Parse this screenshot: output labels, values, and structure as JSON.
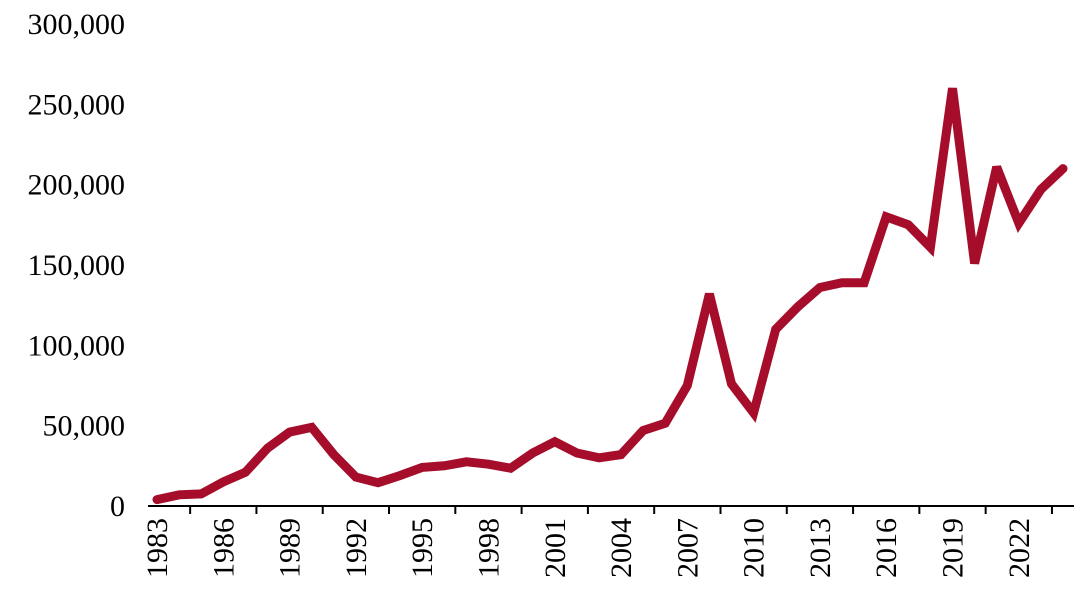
{
  "chart_data": {
    "type": "line",
    "title": "",
    "xlabel": "",
    "ylabel": "",
    "ylim": [
      0,
      300000
    ],
    "xlim": [
      1983,
      2024
    ],
    "grid": false,
    "legend": "none",
    "colors": {
      "line": "#A50D2B",
      "axis": "#000000",
      "background": "#FFFFFF"
    },
    "y_ticks": [
      {
        "value": 0,
        "label": "0"
      },
      {
        "value": 50000,
        "label": "50,000"
      },
      {
        "value": 100000,
        "label": "100,000"
      },
      {
        "value": 150000,
        "label": "150,000"
      },
      {
        "value": 200000,
        "label": "200,000"
      },
      {
        "value": 250000,
        "label": "250,000"
      },
      {
        "value": 300000,
        "label": "300,000"
      }
    ],
    "x_ticks": [
      {
        "value": 1983,
        "label": "1983"
      },
      {
        "value": 1986,
        "label": "1986"
      },
      {
        "value": 1989,
        "label": "1989"
      },
      {
        "value": 1992,
        "label": "1992"
      },
      {
        "value": 1995,
        "label": "1995"
      },
      {
        "value": 1998,
        "label": "1998"
      },
      {
        "value": 2001,
        "label": "2001"
      },
      {
        "value": 2004,
        "label": "2004"
      },
      {
        "value": 2007,
        "label": "2007"
      },
      {
        "value": 2010,
        "label": "2010"
      },
      {
        "value": 2013,
        "label": "2013"
      },
      {
        "value": 2016,
        "label": "2016"
      },
      {
        "value": 2019,
        "label": "2019"
      },
      {
        "value": 2022,
        "label": "2022"
      }
    ],
    "series": [
      {
        "x": [
          1983,
          1984,
          1985,
          1986,
          1987,
          1988,
          1989,
          1990,
          1991,
          1992,
          1993,
          1994,
          1995,
          1996,
          1997,
          1998,
          1999,
          2000,
          2001,
          2002,
          2003,
          2004,
          2005,
          2006,
          2007,
          2008,
          2009,
          2010,
          2011,
          2012,
          2013,
          2014,
          2015,
          2016,
          2017,
          2018,
          2019,
          2020,
          2021,
          2022,
          2023,
          2024
        ],
        "values": [
          4000,
          7000,
          7500,
          15000,
          21000,
          36000,
          46000,
          49000,
          32000,
          18000,
          14500,
          19000,
          24000,
          25000,
          27500,
          26000,
          23500,
          33000,
          40000,
          33000,
          30000,
          32000,
          47000,
          51500,
          75000,
          132000,
          76000,
          58000,
          110000,
          124000,
          136000,
          139000,
          139000,
          180000,
          175000,
          161000,
          260000,
          151000,
          211000,
          176000,
          197000,
          210000
        ]
      }
    ]
  }
}
